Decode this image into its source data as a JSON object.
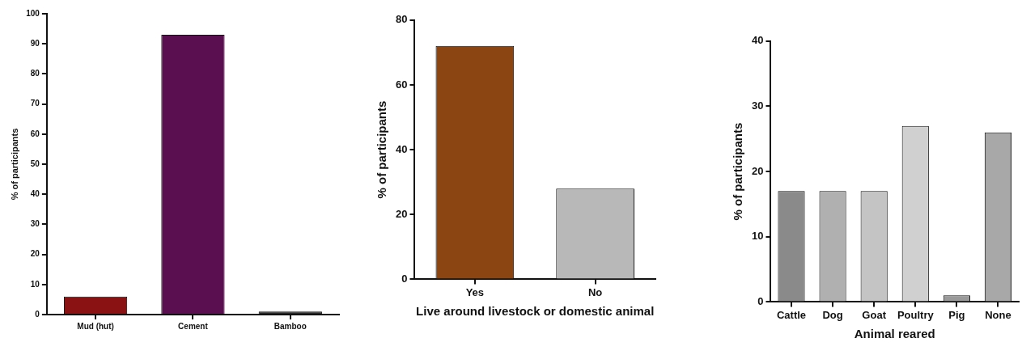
{
  "chart_data": [
    {
      "type": "bar",
      "ylabel": "% of participants",
      "categories": [
        "Mud (hut)",
        "Cement",
        "Bamboo"
      ],
      "values": [
        6,
        93,
        1
      ],
      "colors": [
        "#8b1212",
        "#5a1050",
        "#2a2a2a"
      ],
      "ylim": [
        0,
        100
      ],
      "yticks": [
        0,
        10,
        20,
        30,
        40,
        50,
        60,
        70,
        80,
        90,
        100
      ],
      "grid": false
    },
    {
      "type": "bar",
      "xlabel": "Live around livestock or domestic animal",
      "ylabel": "% of participants",
      "categories": [
        "Yes",
        "No"
      ],
      "values": [
        72,
        28
      ],
      "colors": [
        "#8b4513",
        "#b8b8b8"
      ],
      "ylim": [
        0,
        80
      ],
      "yticks": [
        0,
        20,
        40,
        60,
        80
      ],
      "grid": false
    },
    {
      "type": "bar",
      "xlabel": "Animal reared",
      "ylabel": "% of participants",
      "categories": [
        "Cattle",
        "Dog",
        "Goat",
        "Poultry",
        "Pig",
        "None"
      ],
      "values": [
        17,
        17,
        17,
        27,
        1,
        26
      ],
      "colors": [
        "#8a8a8a",
        "#b0b0b0",
        "#c4c4c4",
        "#d0d0d0",
        "#9a9a9a",
        "#a8a8a8"
      ],
      "ylim": [
        0,
        40
      ],
      "yticks": [
        0,
        10,
        20,
        30,
        40
      ],
      "grid": false
    }
  ]
}
